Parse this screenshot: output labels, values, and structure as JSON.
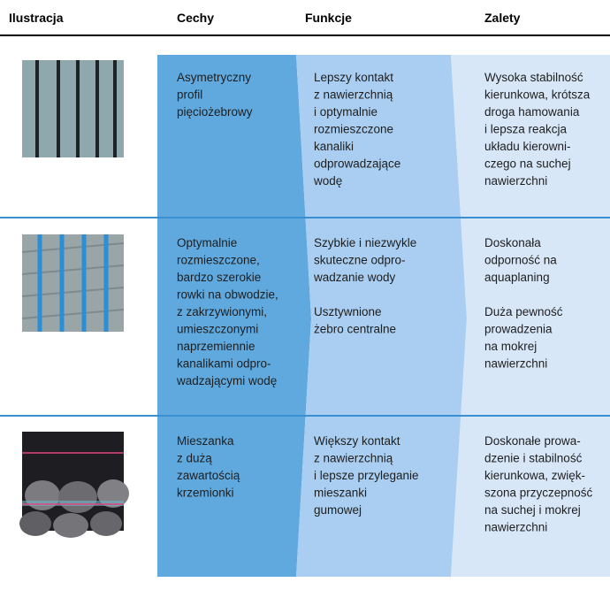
{
  "header": [
    "Ilustracja",
    "Cechy",
    "Funkcje",
    "Zalety"
  ],
  "rows": [
    {
      "cechy": [
        [
          "Asymetryczny",
          "profil",
          "pięciożebrowy"
        ]
      ],
      "funkcje": [
        [
          "Lepszy kontakt",
          "z nawierzchnią",
          "i optymalnie",
          "rozmieszczone",
          "kanaliki",
          "odprowadzające",
          "wodę"
        ]
      ],
      "zalety": [
        [
          "Wysoka stabilność",
          "kierunkowa, krótsza",
          "droga hamowania",
          "i lepsza reakcja",
          "układu kierowni-",
          "czego na suchej",
          "nawierzchni"
        ]
      ]
    },
    {
      "cechy": [
        [
          "Optymalnie",
          "rozmieszczone,",
          "bardzo szerokie",
          "rowki na obwodzie,",
          "z zakrzywionymi,",
          "umieszczonymi",
          "naprzemiennie",
          "kanalikami odpro-",
          "wadzającymi wodę"
        ]
      ],
      "funkcje": [
        [
          "Szybkie i niezwykle",
          "skuteczne odpro-",
          "wadzanie wody"
        ],
        [
          "Usztywnione",
          "żebro centralne"
        ]
      ],
      "zalety": [
        [
          "Doskonała",
          "odporność na",
          "aquaplaning"
        ],
        [
          "Duża pewność",
          "prowadzenia",
          "na mokrej",
          "nawierzchni"
        ]
      ]
    },
    {
      "cechy": [
        [
          "Mieszanka",
          "z dużą",
          "zawartością",
          "krzemionki"
        ]
      ],
      "funkcje": [
        [
          "Większy kontakt",
          "z nawierzchnią",
          "i lepsze przyleganie",
          "mieszanki",
          "gumowej"
        ]
      ],
      "zalety": [
        [
          "Doskonałe prowa-",
          "dzenie i stabilność",
          "kierunkowa, zwięk-",
          "szona przyczepność",
          "na suchej i mokrej",
          "nawierzchni"
        ]
      ]
    }
  ]
}
